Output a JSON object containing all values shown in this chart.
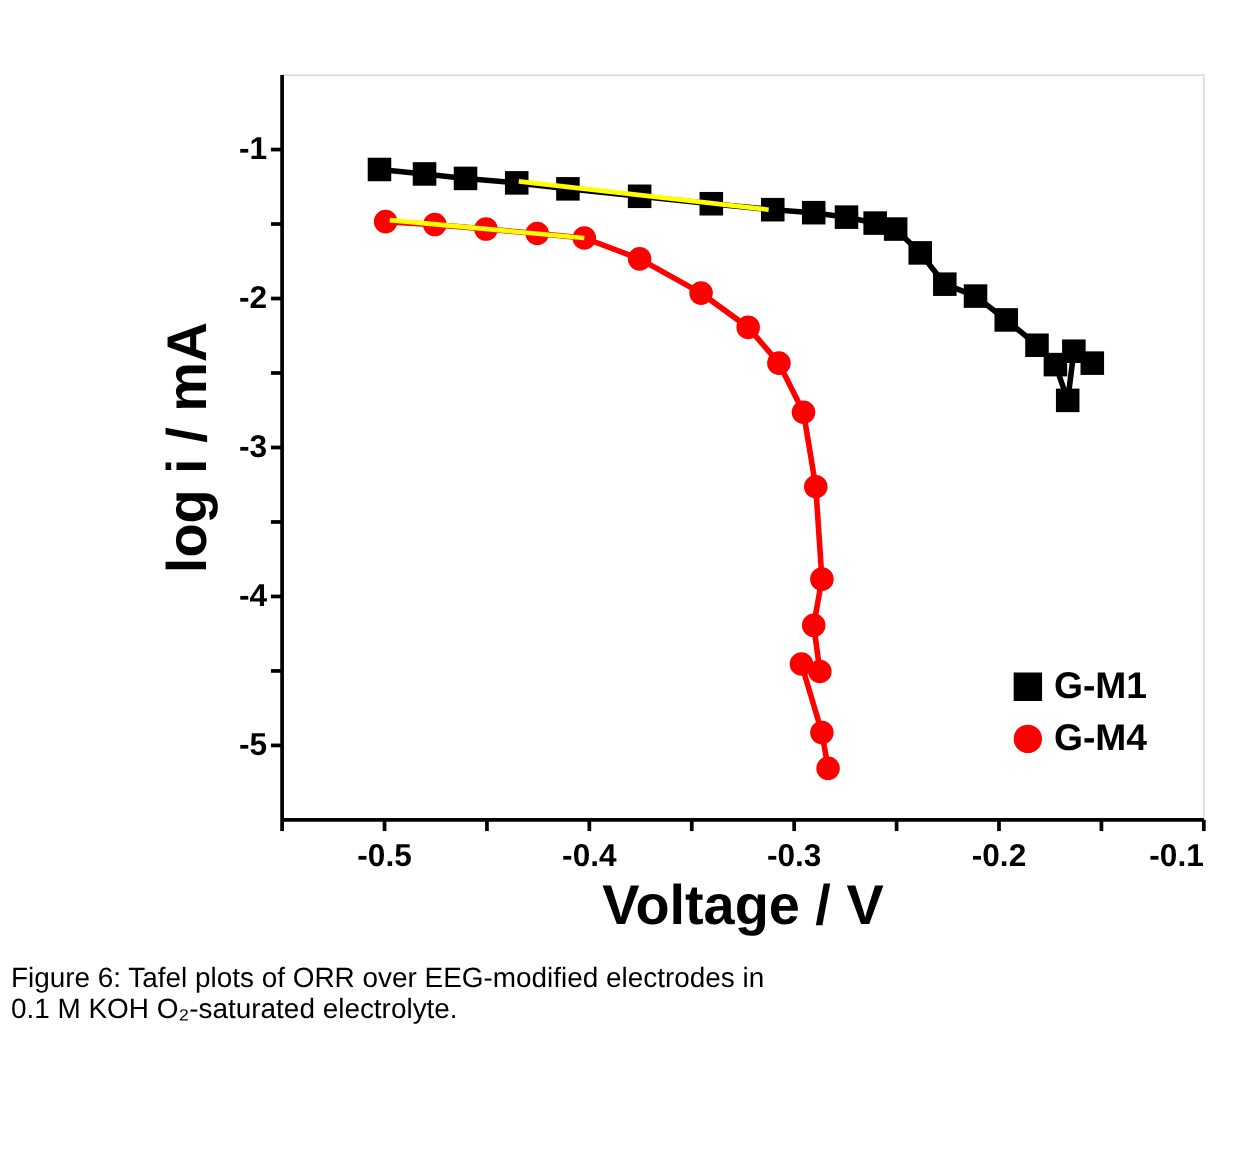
{
  "chart_data": {
    "type": "line",
    "xlabel": "Voltage / V",
    "ylabel": "log i / mA",
    "xlim": [
      -0.55,
      -0.1
    ],
    "ylim": [
      -5.5,
      -0.5
    ],
    "xticks": [
      {
        "value": -0.55,
        "label": null
      },
      -0.5,
      {
        "value": -0.45,
        "label": null
      },
      -0.4,
      {
        "value": -0.35,
        "label": null
      },
      -0.3,
      {
        "value": -0.25,
        "label": null
      },
      -0.2,
      {
        "value": -0.15,
        "label": null
      },
      -0.1
    ],
    "yticks": [
      {
        "value": -1.5,
        "label": null
      },
      -1,
      -2,
      {
        "value": -2.5,
        "label": null
      },
      -3,
      {
        "value": -3.5,
        "label": null
      },
      -4,
      {
        "value": -4.5,
        "label": null
      },
      -5
    ],
    "grid": false,
    "legend": "bottom right",
    "line_style": "solid",
    "series": [
      {
        "name": "G-M1",
        "color": "#000000",
        "marker": "square",
        "x": [
          -0.502,
          -0.48,
          -0.46,
          -0.435,
          -0.41,
          -0.375,
          -0.34,
          -0.31,
          -0.29,
          -0.274,
          -0.26,
          -0.25,
          -0.238,
          -0.226,
          -0.211,
          -0.196,
          -0.181,
          -0.172,
          -0.166,
          -0.163,
          -0.154
        ],
        "values": [
          -1.14,
          -1.17,
          -1.2,
          -1.23,
          -1.27,
          -1.32,
          -1.37,
          -1.41,
          -1.43,
          -1.46,
          -1.5,
          -1.54,
          -1.7,
          -1.91,
          -1.99,
          -2.15,
          -2.32,
          -2.45,
          -2.69,
          -2.36,
          -2.44
        ]
      },
      {
        "name": "G-M4",
        "color": "#ff0000",
        "marker": "circle",
        "x": [
          -0.499,
          -0.475,
          -0.45,
          -0.425,
          -0.402,
          -0.375,
          -0.345,
          -0.322,
          -0.307,
          -0.295,
          -0.289,
          -0.286,
          -0.29,
          -0.287,
          -0.296,
          -0.286,
          -0.283
        ],
        "values": [
          -1.49,
          -1.51,
          -1.54,
          -1.57,
          -1.6,
          -1.74,
          -1.97,
          -2.2,
          -2.44,
          -2.77,
          -3.27,
          -3.89,
          -4.2,
          -4.51,
          -4.46,
          -4.92,
          -5.16
        ]
      },
      {
        "color": "#ffff00",
        "marker": "none",
        "x": [
          -0.434,
          -0.312
        ],
        "values": [
          -1.22,
          -1.41
        ]
      },
      {
        "color": "#ffff00",
        "marker": "none",
        "x": [
          -0.497,
          -0.402
        ],
        "values": [
          -1.48,
          -1.6
        ]
      }
    ],
    "annotations": [
      "Figure 6: Tafel plots of ORR over EEG-modified electrodes in",
      "0.1 M KOH O₂-saturated electrolyte."
    ]
  }
}
